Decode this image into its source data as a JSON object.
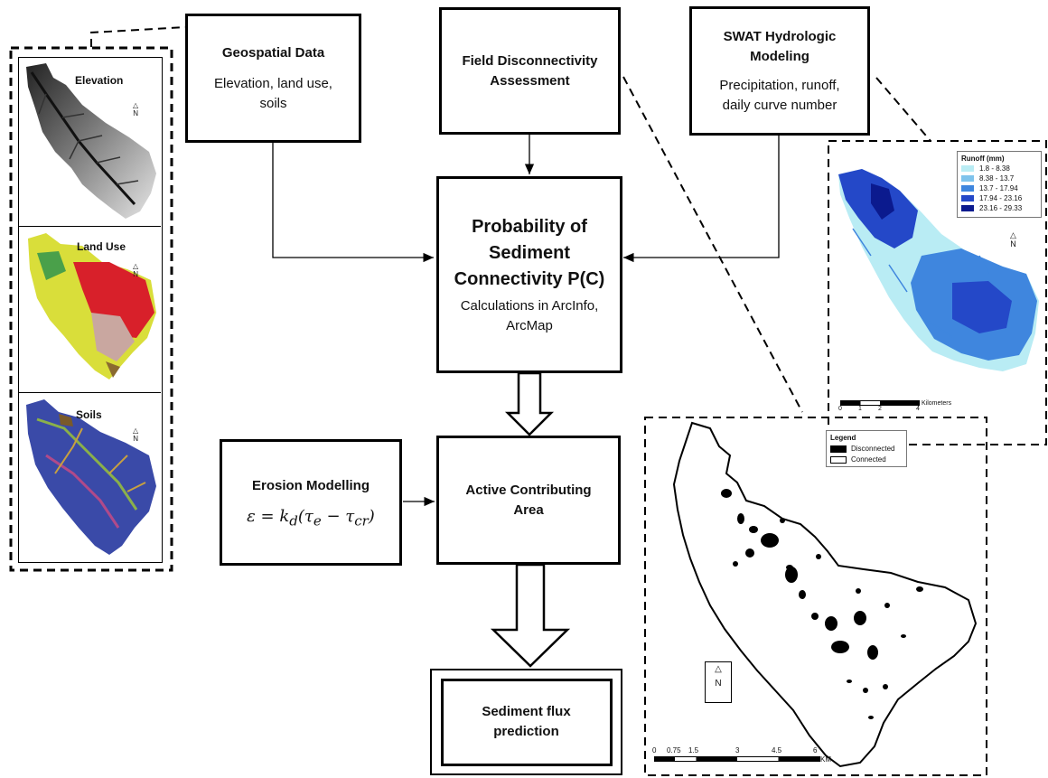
{
  "boxes": {
    "geospatial": {
      "title": "Geospatial Data",
      "body": "Elevation, land use, soils"
    },
    "field": {
      "title": "Field Disconnectivity Assessment"
    },
    "swat": {
      "title": "SWAT Hydrologic Modeling",
      "body": "Precipitation, runoff, daily curve number"
    },
    "probability": {
      "title": "Probability of Sediment Connectivity P(C)",
      "body": "Calculations in ArcInfo, ArcMap"
    },
    "erosion": {
      "title": "Erosion Modelling"
    },
    "active": {
      "title": "Active Contributing Area"
    },
    "flux": {
      "title": "Sediment flux prediction"
    }
  },
  "left_maps": {
    "elevation": "Elevation",
    "landuse": "Land Use",
    "soils": "Soils",
    "north": "N"
  },
  "runoff_map": {
    "legend_title": "Runoff (mm)",
    "classes": [
      {
        "label": "1.8 - 8.38",
        "color": "#b9ecf4"
      },
      {
        "label": "8.38 - 13.7",
        "color": "#7fc3ec"
      },
      {
        "label": "13.7 - 17.94",
        "color": "#3f86de"
      },
      {
        "label": "17.94 - 23.16",
        "color": "#2448c8"
      },
      {
        "label": "23.16 - 29.33",
        "color": "#0b1a8e"
      }
    ],
    "scale_ticks": [
      "0",
      "1",
      "2",
      "4"
    ],
    "scale_unit": "Kilometers",
    "north": "N"
  },
  "connectivity_map": {
    "legend_title": "Legend",
    "legend_items": [
      "Disconnected",
      "Connected"
    ],
    "scale_ticks": [
      "0",
      "0.75",
      "1.5",
      "3",
      "4.5",
      "6"
    ],
    "scale_unit": "KM",
    "north": "N"
  },
  "colors": {
    "runoff_base": "#b9ecf4",
    "runoff_mid": "#3f86de",
    "runoff_dark": "#2448c8"
  }
}
